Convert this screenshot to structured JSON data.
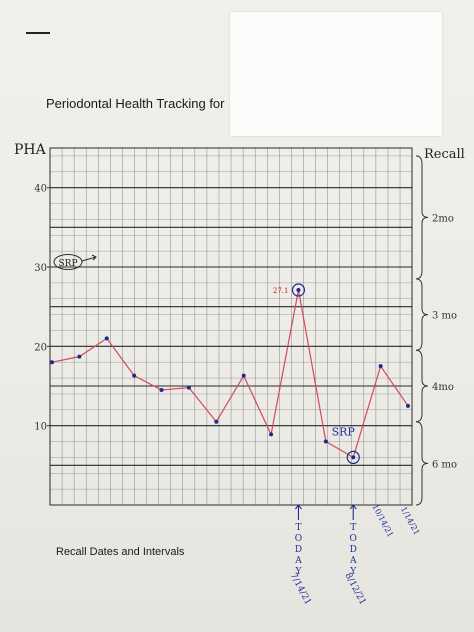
{
  "page": {
    "title": "Periodontal Health Tracking for",
    "footer_label": "Recall Dates and Intervals",
    "colors": {
      "grid": "#4a4a4a",
      "line": "#d24a5a",
      "point": "#1e2a8a",
      "circle": "#1e2a8a",
      "label_red": "#d01818",
      "label_blue": "#1f2f9a"
    }
  },
  "chart_data": {
    "type": "line",
    "ylabel": "PHA",
    "right_label": "Recall",
    "ylim": [
      0,
      45
    ],
    "yticks": [
      10,
      20,
      30,
      40
    ],
    "grid": true,
    "x": [
      0,
      1,
      2,
      3,
      4,
      5,
      6,
      7,
      8,
      9,
      10,
      11,
      12,
      13
    ],
    "values": [
      18,
      18.7,
      21,
      16.3,
      14.5,
      14.8,
      10.5,
      16.3,
      8.9,
      27.1,
      8,
      6,
      17.5,
      12.5
    ],
    "annotations": {
      "srp_start": {
        "text": "SRP",
        "y": 30
      },
      "peak_value": {
        "text": "27.1",
        "index": 9
      },
      "srp_low": {
        "text": "SRP",
        "index": 11
      },
      "circled_points": [
        9,
        11
      ]
    },
    "intervals": [
      {
        "label": "2mo",
        "from": 44,
        "to": 28.5
      },
      {
        "label": "3 mo",
        "from": 28.5,
        "to": 19.5
      },
      {
        "label": "4mo",
        "from": 19.5,
        "to": 10.5
      },
      {
        "label": "6 mo",
        "from": 10.5,
        "to": 0
      }
    ],
    "date_labels": [
      {
        "index": 9,
        "text": "TODAY",
        "date": "7/14/21"
      },
      {
        "index": 11,
        "text": "TODAY",
        "date": "8/12/21"
      },
      {
        "index": 12,
        "date": "10/14/21"
      },
      {
        "index": 13,
        "date": "1/14/21"
      }
    ]
  }
}
